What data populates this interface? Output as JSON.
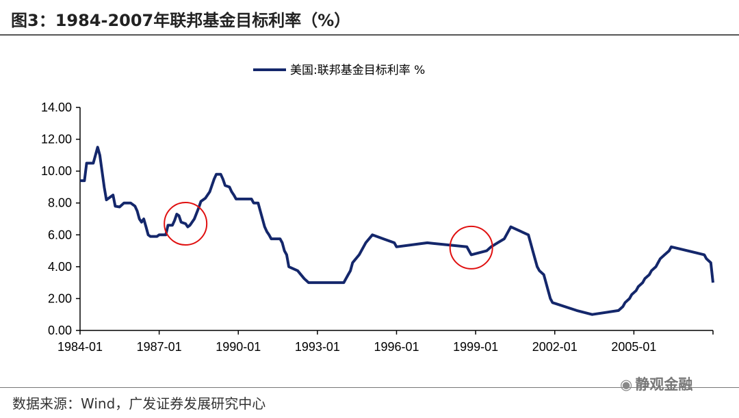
{
  "header": {
    "title": "图3：1984-2007年联邦基金目标利率（%）"
  },
  "footer": {
    "source": "数据来源：Wind，广发证券发展研究中心"
  },
  "watermark": {
    "text": "静观金融"
  },
  "colors": {
    "series": "#14276b",
    "highlight_circle": "#e01010",
    "axis": "#000000"
  },
  "chart_data": {
    "type": "line",
    "title": "",
    "xlabel": "",
    "ylabel": "",
    "ylim": [
      0,
      14
    ],
    "yticks": [
      "14.00",
      "12.00",
      "10.00",
      "8.00",
      "6.00",
      "4.00",
      "2.00",
      "0.00"
    ],
    "xticks": [
      "1984-01",
      "1987-01",
      "1990-01",
      "1993-01",
      "1996-01",
      "1999-01",
      "2002-01",
      "2005-01"
    ],
    "xlim": [
      "1984-01",
      "2008-01"
    ],
    "grid": false,
    "legend_position": "top-center",
    "series": [
      {
        "name": "美国:联邦基金目标利率 %",
        "points": [
          [
            "1984-01",
            9.4
          ],
          [
            "1984-03",
            9.4
          ],
          [
            "1984-04",
            10.5
          ],
          [
            "1984-07",
            10.5
          ],
          [
            "1984-08",
            11.0
          ],
          [
            "1984-09",
            11.5
          ],
          [
            "1984-10",
            11.0
          ],
          [
            "1984-11",
            10.0
          ],
          [
            "1984-12",
            9.0
          ],
          [
            "1985-01",
            8.2
          ],
          [
            "1985-03",
            8.4
          ],
          [
            "1985-04",
            8.5
          ],
          [
            "1985-05",
            7.8
          ],
          [
            "1985-07",
            7.75
          ],
          [
            "1985-09",
            8.0
          ],
          [
            "1985-12",
            8.0
          ],
          [
            "1986-02",
            7.8
          ],
          [
            "1986-03",
            7.5
          ],
          [
            "1986-04",
            7.0
          ],
          [
            "1986-05",
            6.8
          ],
          [
            "1986-06",
            7.0
          ],
          [
            "1986-07",
            6.5
          ],
          [
            "1986-08",
            6.0
          ],
          [
            "1986-09",
            5.9
          ],
          [
            "1986-12",
            5.9
          ],
          [
            "1987-01",
            6.0
          ],
          [
            "1987-04",
            6.0
          ],
          [
            "1987-05",
            6.6
          ],
          [
            "1987-07",
            6.6
          ],
          [
            "1987-08",
            6.9
          ],
          [
            "1987-09",
            7.3
          ],
          [
            "1987-10",
            7.2
          ],
          [
            "1987-11",
            6.8
          ],
          [
            "1988-01",
            6.7
          ],
          [
            "1988-02",
            6.5
          ],
          [
            "1988-03",
            6.6
          ],
          [
            "1988-05",
            7.0
          ],
          [
            "1988-07",
            7.7
          ],
          [
            "1988-08",
            8.1
          ],
          [
            "1988-10",
            8.3
          ],
          [
            "1988-12",
            8.7
          ],
          [
            "1989-01",
            9.1
          ],
          [
            "1989-02",
            9.5
          ],
          [
            "1989-03",
            9.8
          ],
          [
            "1989-05",
            9.8
          ],
          [
            "1989-06",
            9.5
          ],
          [
            "1989-07",
            9.1
          ],
          [
            "1989-09",
            9.0
          ],
          [
            "1989-10",
            8.7
          ],
          [
            "1989-11",
            8.5
          ],
          [
            "1989-12",
            8.25
          ],
          [
            "1990-07",
            8.25
          ],
          [
            "1990-08",
            8.0
          ],
          [
            "1990-10",
            8.0
          ],
          [
            "1990-11",
            7.5
          ],
          [
            "1990-12",
            7.0
          ],
          [
            "1991-01",
            6.5
          ],
          [
            "1991-02",
            6.2
          ],
          [
            "1991-03",
            6.0
          ],
          [
            "1991-04",
            5.75
          ],
          [
            "1991-08",
            5.75
          ],
          [
            "1991-09",
            5.5
          ],
          [
            "1991-10",
            5.0
          ],
          [
            "1991-11",
            4.75
          ],
          [
            "1991-12",
            4.0
          ],
          [
            "1992-04",
            3.75
          ],
          [
            "1992-07",
            3.25
          ],
          [
            "1992-09",
            3.0
          ],
          [
            "1994-01",
            3.0
          ],
          [
            "1994-02",
            3.25
          ],
          [
            "1994-03",
            3.5
          ],
          [
            "1994-04",
            3.75
          ],
          [
            "1994-05",
            4.25
          ],
          [
            "1994-08",
            4.75
          ],
          [
            "1994-11",
            5.5
          ],
          [
            "1995-02",
            6.0
          ],
          [
            "1995-07",
            5.75
          ],
          [
            "1995-12",
            5.5
          ],
          [
            "1996-01",
            5.25
          ],
          [
            "1997-03",
            5.5
          ],
          [
            "1998-09",
            5.25
          ],
          [
            "1998-10",
            5.0
          ],
          [
            "1998-11",
            4.75
          ],
          [
            "1999-06",
            5.0
          ],
          [
            "1999-08",
            5.25
          ],
          [
            "1999-11",
            5.5
          ],
          [
            "2000-02",
            5.75
          ],
          [
            "2000-03",
            6.0
          ],
          [
            "2000-05",
            6.5
          ],
          [
            "2001-01",
            6.0
          ],
          [
            "2001-02",
            5.5
          ],
          [
            "2001-03",
            5.0
          ],
          [
            "2001-04",
            4.5
          ],
          [
            "2001-05",
            4.0
          ],
          [
            "2001-06",
            3.75
          ],
          [
            "2001-08",
            3.5
          ],
          [
            "2001-09",
            3.0
          ],
          [
            "2001-10",
            2.5
          ],
          [
            "2001-11",
            2.0
          ],
          [
            "2001-12",
            1.75
          ],
          [
            "2002-11",
            1.25
          ],
          [
            "2003-06",
            1.0
          ],
          [
            "2004-06",
            1.25
          ],
          [
            "2004-08",
            1.5
          ],
          [
            "2004-09",
            1.75
          ],
          [
            "2004-11",
            2.0
          ],
          [
            "2004-12",
            2.25
          ],
          [
            "2005-02",
            2.5
          ],
          [
            "2005-03",
            2.75
          ],
          [
            "2005-05",
            3.0
          ],
          [
            "2005-06",
            3.25
          ],
          [
            "2005-08",
            3.5
          ],
          [
            "2005-09",
            3.75
          ],
          [
            "2005-11",
            4.0
          ],
          [
            "2005-12",
            4.25
          ],
          [
            "2006-01",
            4.5
          ],
          [
            "2006-03",
            4.75
          ],
          [
            "2006-05",
            5.0
          ],
          [
            "2006-06",
            5.25
          ],
          [
            "2007-09",
            4.75
          ],
          [
            "2007-10",
            4.5
          ],
          [
            "2007-12",
            4.25
          ],
          [
            "2008-01",
            3.0
          ]
        ]
      }
    ],
    "highlights": [
      {
        "x": "1988-01",
        "y": 6.7
      },
      {
        "x": "1998-11",
        "y": 5.2
      }
    ]
  }
}
